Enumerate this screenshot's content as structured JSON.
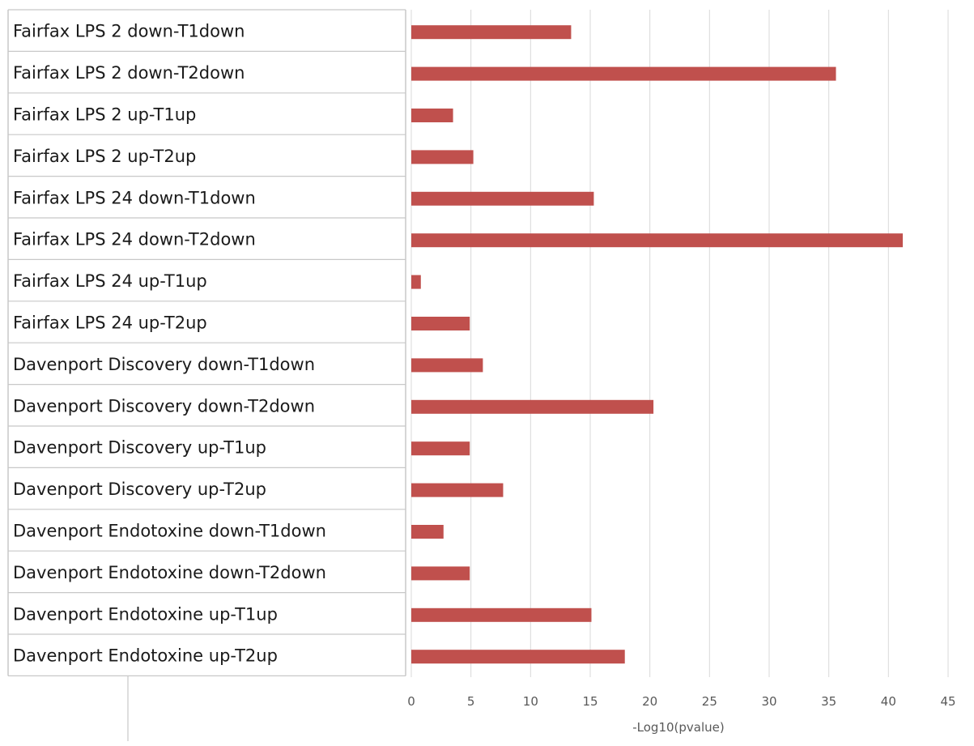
{
  "chart_data": {
    "type": "bar",
    "orientation": "horizontal",
    "categories": [
      "Fairfax LPS 2 down-T1down",
      "Fairfax LPS 2 down-T2down",
      "Fairfax LPS 2 up-T1up",
      "Fairfax LPS 2 up-T2up",
      "Fairfax LPS 24 down-T1down",
      "Fairfax LPS 24 down-T2down",
      "Fairfax LPS 24 up-T1up",
      "Fairfax LPS 24 up-T2up",
      "Davenport Discovery down-T1down",
      "Davenport Discovery down-T2down",
      "Davenport Discovery up-T1up",
      "Davenport Discovery up-T2up",
      "Davenport Endotoxine down-T1down",
      "Davenport Endotoxine down-T2down",
      "Davenport Endotoxine up-T1up",
      "Davenport Endotoxine up-T2up"
    ],
    "values": [
      13.4,
      35.6,
      3.5,
      5.2,
      15.3,
      41.2,
      0.8,
      4.9,
      6.0,
      20.3,
      4.9,
      7.7,
      2.7,
      4.9,
      15.1,
      17.9
    ],
    "title": "",
    "xlabel": "-Log10(pvalue)",
    "ylabel": "",
    "xlim": [
      0,
      45
    ],
    "xticks": [
      0,
      5,
      10,
      15,
      20,
      25,
      30,
      35,
      40,
      45
    ],
    "grid": "vertical",
    "legend": "none",
    "colors": {
      "bar": "#c0504d",
      "grid": "#d9d9d9",
      "table_border": "#c8c8c8",
      "label_text": "#1a1a1a",
      "tick_text": "#595959"
    }
  }
}
